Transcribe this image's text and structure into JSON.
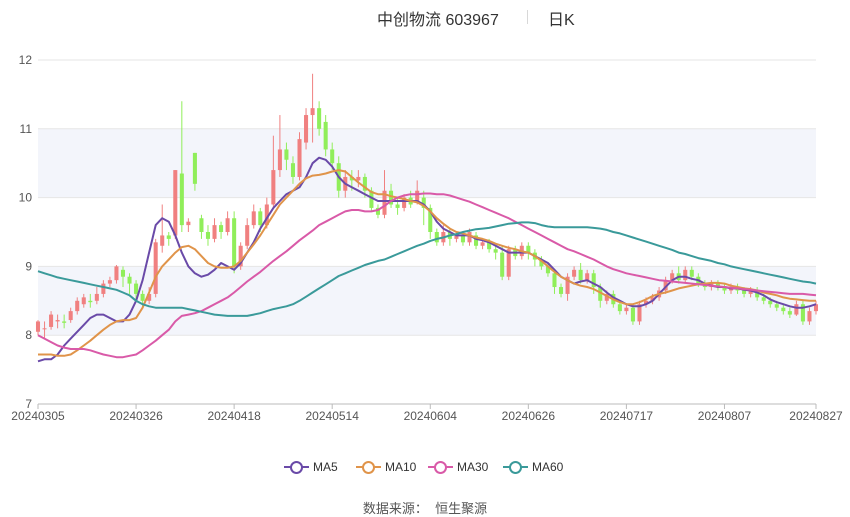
{
  "title": {
    "name": "中创物流 603967",
    "period": "日K"
  },
  "source": {
    "label": "数据来源：",
    "value": "恒生聚源"
  },
  "colors": {
    "up": "#f08080",
    "down": "#90ee5a",
    "MA5": "#6a4aa8",
    "MA10": "#e0944a",
    "MA30": "#d95aa8",
    "MA60": "#3a9a9a",
    "band": "#f3f5fb",
    "grid": "#e6e6e6"
  },
  "chart_data": {
    "type": "candlestick",
    "ylim": [
      7,
      12
    ],
    "yticks": [
      "7",
      "8",
      "9",
      "10",
      "11",
      "12"
    ],
    "xtick_labels": [
      "20240305",
      "20240326",
      "20240418",
      "20240514",
      "20240604",
      "20240626",
      "20240717",
      "20240807",
      "20240827"
    ],
    "xtick_index": [
      0,
      15,
      30,
      45,
      60,
      75,
      90,
      105,
      119
    ],
    "grid": true,
    "legend_position": "bottom",
    "candles": [
      [
        8.05,
        8.2,
        8.0,
        8.22
      ],
      [
        8.1,
        8.1,
        7.95,
        8.2
      ],
      [
        8.12,
        8.3,
        8.08,
        8.35
      ],
      [
        8.2,
        8.22,
        8.1,
        8.3
      ],
      [
        8.2,
        8.18,
        8.1,
        8.3
      ],
      [
        8.22,
        8.35,
        8.18,
        8.4
      ],
      [
        8.35,
        8.5,
        8.3,
        8.55
      ],
      [
        8.45,
        8.55,
        8.4,
        8.6
      ],
      [
        8.5,
        8.48,
        8.4,
        8.6
      ],
      [
        8.5,
        8.6,
        8.45,
        8.7
      ],
      [
        8.6,
        8.75,
        8.55,
        8.8
      ],
      [
        8.75,
        8.8,
        8.7,
        8.85
      ],
      [
        8.8,
        9.0,
        8.75,
        9.02
      ],
      [
        8.95,
        8.85,
        8.7,
        9.0
      ],
      [
        8.85,
        8.75,
        8.6,
        8.9
      ],
      [
        8.75,
        8.6,
        8.5,
        8.8
      ],
      [
        8.6,
        8.5,
        8.4,
        8.65
      ],
      [
        8.5,
        8.6,
        8.45,
        8.7
      ],
      [
        8.6,
        9.35,
        8.55,
        9.4
      ],
      [
        9.3,
        9.45,
        9.2,
        9.9
      ],
      [
        9.45,
        9.4,
        9.3,
        9.5
      ],
      [
        9.45,
        10.4,
        9.4,
        10.4
      ],
      [
        10.35,
        9.6,
        9.5,
        11.4
      ],
      [
        9.6,
        9.65,
        9.5,
        9.7
      ],
      [
        10.65,
        10.2,
        10.1,
        10.65
      ],
      [
        9.7,
        9.5,
        9.4,
        9.75
      ],
      [
        9.5,
        9.4,
        9.3,
        9.6
      ],
      [
        9.4,
        9.6,
        9.35,
        9.7
      ],
      [
        9.6,
        9.5,
        9.4,
        9.65
      ],
      [
        9.5,
        9.7,
        9.45,
        9.8
      ],
      [
        9.7,
        9.0,
        8.9,
        9.8
      ],
      [
        9.0,
        9.3,
        8.95,
        9.35
      ],
      [
        9.3,
        9.6,
        9.25,
        9.7
      ],
      [
        9.6,
        9.8,
        9.55,
        9.9
      ],
      [
        9.8,
        9.6,
        9.5,
        9.85
      ],
      [
        9.6,
        9.9,
        9.55,
        10.0
      ],
      [
        9.9,
        10.4,
        9.85,
        10.9
      ],
      [
        10.4,
        10.7,
        10.3,
        11.2
      ],
      [
        10.7,
        10.55,
        10.4,
        10.8
      ],
      [
        10.5,
        10.3,
        10.2,
        10.6
      ],
      [
        10.3,
        10.85,
        10.25,
        10.95
      ],
      [
        10.8,
        11.2,
        10.7,
        11.3
      ],
      [
        11.2,
        11.3,
        10.8,
        11.8
      ],
      [
        11.3,
        11.0,
        10.9,
        11.4
      ],
      [
        11.1,
        10.7,
        10.6,
        11.2
      ],
      [
        10.7,
        10.5,
        10.4,
        10.8
      ],
      [
        10.5,
        10.1,
        10.0,
        10.6
      ],
      [
        10.1,
        10.3,
        10.0,
        10.4
      ],
      [
        10.3,
        10.25,
        10.1,
        10.4
      ],
      [
        10.25,
        10.3,
        10.15,
        10.4
      ],
      [
        10.3,
        10.1,
        10.0,
        10.35
      ],
      [
        10.1,
        9.85,
        9.8,
        10.15
      ],
      [
        9.85,
        9.75,
        9.7,
        9.9
      ],
      [
        9.75,
        10.1,
        9.7,
        10.4
      ],
      [
        10.1,
        9.9,
        9.85,
        10.2
      ],
      [
        9.9,
        9.85,
        9.75,
        10.0
      ],
      [
        9.85,
        10.0,
        9.8,
        10.05
      ],
      [
        10.0,
        9.9,
        9.85,
        10.1
      ],
      [
        9.95,
        10.1,
        9.9,
        10.25
      ],
      [
        10.0,
        9.85,
        9.6,
        10.1
      ],
      [
        9.85,
        9.5,
        9.4,
        9.9
      ],
      [
        9.5,
        9.35,
        9.3,
        9.55
      ],
      [
        9.35,
        9.5,
        9.3,
        9.6
      ],
      [
        9.5,
        9.4,
        9.3,
        9.55
      ],
      [
        9.4,
        9.45,
        9.35,
        9.5
      ],
      [
        9.45,
        9.35,
        9.3,
        9.5
      ],
      [
        9.35,
        9.5,
        9.3,
        9.55
      ],
      [
        9.45,
        9.3,
        9.25,
        9.5
      ],
      [
        9.3,
        9.35,
        9.25,
        9.4
      ],
      [
        9.35,
        9.25,
        9.2,
        9.4
      ],
      [
        9.25,
        9.2,
        9.1,
        9.3
      ],
      [
        9.2,
        8.85,
        8.8,
        9.3
      ],
      [
        8.85,
        9.25,
        8.8,
        9.3
      ],
      [
        9.25,
        9.15,
        9.1,
        9.3
      ],
      [
        9.15,
        9.3,
        9.1,
        9.35
      ],
      [
        9.3,
        9.2,
        9.1,
        9.35
      ],
      [
        9.2,
        9.1,
        9.0,
        9.25
      ],
      [
        9.1,
        9.0,
        8.95,
        9.15
      ],
      [
        9.0,
        8.9,
        8.85,
        9.05
      ],
      [
        8.9,
        8.7,
        8.6,
        8.95
      ],
      [
        8.7,
        8.6,
        8.55,
        8.75
      ],
      [
        8.6,
        8.85,
        8.5,
        8.9
      ],
      [
        8.85,
        8.95,
        8.8,
        9.0
      ],
      [
        8.95,
        8.8,
        8.75,
        9.05
      ],
      [
        8.8,
        8.9,
        8.75,
        8.95
      ],
      [
        8.9,
        8.7,
        8.6,
        8.95
      ],
      [
        8.7,
        8.5,
        8.4,
        8.75
      ],
      [
        8.5,
        8.6,
        8.45,
        8.65
      ],
      [
        8.6,
        8.45,
        8.4,
        8.65
      ],
      [
        8.45,
        8.35,
        8.3,
        8.5
      ],
      [
        8.35,
        8.4,
        8.3,
        8.45
      ],
      [
        8.4,
        8.2,
        8.15,
        8.45
      ],
      [
        8.2,
        8.45,
        8.15,
        8.5
      ],
      [
        8.45,
        8.5,
        8.4,
        8.55
      ],
      [
        8.5,
        8.55,
        8.45,
        8.6
      ],
      [
        8.55,
        8.65,
        8.5,
        8.7
      ],
      [
        8.65,
        8.8,
        8.6,
        8.85
      ],
      [
        8.8,
        8.9,
        8.75,
        8.95
      ],
      [
        8.9,
        8.8,
        8.75,
        9.0
      ],
      [
        8.8,
        8.95,
        8.75,
        9.0
      ],
      [
        8.95,
        8.85,
        8.8,
        9.0
      ],
      [
        8.85,
        8.75,
        8.7,
        8.9
      ],
      [
        8.75,
        8.7,
        8.65,
        8.8
      ],
      [
        8.7,
        8.75,
        8.65,
        8.8
      ],
      [
        8.75,
        8.7,
        8.65,
        8.8
      ],
      [
        8.7,
        8.65,
        8.6,
        8.75
      ],
      [
        8.65,
        8.7,
        8.6,
        8.75
      ],
      [
        8.7,
        8.65,
        8.6,
        8.75
      ],
      [
        8.65,
        8.6,
        8.55,
        8.7
      ],
      [
        8.6,
        8.65,
        8.55,
        8.7
      ],
      [
        8.65,
        8.55,
        8.5,
        8.7
      ],
      [
        8.55,
        8.5,
        8.45,
        8.6
      ],
      [
        8.5,
        8.45,
        8.4,
        8.55
      ],
      [
        8.45,
        8.4,
        8.35,
        8.5
      ],
      [
        8.4,
        8.35,
        8.3,
        8.45
      ],
      [
        8.35,
        8.3,
        8.25,
        8.4
      ],
      [
        8.3,
        8.45,
        8.28,
        8.5
      ],
      [
        8.45,
        8.2,
        8.15,
        8.5
      ],
      [
        8.2,
        8.35,
        8.15,
        8.4
      ],
      [
        8.35,
        8.45,
        8.3,
        8.5
      ]
    ],
    "series": [
      {
        "name": "MA5",
        "color": "#6a4aa8",
        "values": [
          7.62,
          7.65,
          7.65,
          7.72,
          7.85,
          7.95,
          8.05,
          8.15,
          8.25,
          8.3,
          8.3,
          8.25,
          8.2,
          8.2,
          8.3,
          8.5,
          8.8,
          9.2,
          9.6,
          9.7,
          9.65,
          9.45,
          9.2,
          9.0,
          8.9,
          8.85,
          8.88,
          8.95,
          9.05,
          9.0,
          8.95,
          9.05,
          9.2,
          9.35,
          9.55,
          9.7,
          9.85,
          9.95,
          10.05,
          10.1,
          10.15,
          10.3,
          10.5,
          10.58,
          10.55,
          10.45,
          10.3,
          10.2,
          10.15,
          10.1,
          10.05,
          10.0,
          9.95,
          9.95,
          9.95,
          9.95,
          9.95,
          9.95,
          9.95,
          9.9,
          9.8,
          9.65,
          9.55,
          9.5,
          9.45,
          9.45,
          9.45,
          9.4,
          9.38,
          9.35,
          9.3,
          9.25,
          9.2,
          9.2,
          9.2,
          9.2,
          9.15,
          9.1,
          9.05,
          8.95,
          8.85,
          8.8,
          8.75,
          8.78,
          8.8,
          8.75,
          8.7,
          8.62,
          8.55,
          8.5,
          8.45,
          8.42,
          8.42,
          8.45,
          8.5,
          8.6,
          8.7,
          8.8,
          8.85,
          8.85,
          8.82,
          8.8,
          8.75,
          8.72,
          8.7,
          8.7,
          8.68,
          8.68,
          8.66,
          8.65,
          8.62,
          8.58,
          8.52,
          8.48,
          8.45,
          8.42,
          8.4,
          8.4,
          8.42,
          8.45
        ]
      },
      {
        "name": "MA10",
        "color": "#e0944a",
        "values": [
          7.72,
          7.72,
          7.72,
          7.7,
          7.7,
          7.72,
          7.78,
          7.85,
          7.92,
          8.0,
          8.08,
          8.15,
          8.2,
          8.22,
          8.22,
          8.25,
          8.4,
          8.62,
          8.85,
          9.0,
          9.1,
          9.2,
          9.28,
          9.3,
          9.25,
          9.15,
          9.05,
          9.0,
          8.98,
          8.98,
          9.0,
          9.08,
          9.2,
          9.32,
          9.45,
          9.6,
          9.75,
          9.9,
          10.0,
          10.1,
          10.2,
          10.28,
          10.32,
          10.33,
          10.35,
          10.38,
          10.4,
          10.38,
          10.3,
          10.22,
          10.15,
          10.08,
          10.05,
          10.05,
          10.02,
          10.0,
          9.98,
          9.95,
          9.93,
          9.88,
          9.8,
          9.7,
          9.62,
          9.55,
          9.5,
          9.48,
          9.45,
          9.42,
          9.4,
          9.37,
          9.33,
          9.3,
          9.27,
          9.25,
          9.22,
          9.2,
          9.15,
          9.08,
          9.0,
          8.92,
          8.85,
          8.8,
          8.75,
          8.72,
          8.7,
          8.67,
          8.62,
          8.57,
          8.52,
          8.48,
          8.45,
          8.45,
          8.48,
          8.52,
          8.57,
          8.6,
          8.62,
          8.65,
          8.68,
          8.7,
          8.72,
          8.74,
          8.75,
          8.76,
          8.76,
          8.75,
          8.72,
          8.7,
          8.68,
          8.67,
          8.65,
          8.62,
          8.6,
          8.58,
          8.55,
          8.53,
          8.52,
          8.51,
          8.5,
          8.5
        ]
      },
      {
        "name": "MA30",
        "color": "#d95aa8",
        "values": [
          8.0,
          7.95,
          7.9,
          7.85,
          7.82,
          7.8,
          7.8,
          7.8,
          7.78,
          7.75,
          7.72,
          7.7,
          7.68,
          7.68,
          7.7,
          7.72,
          7.78,
          7.85,
          7.92,
          8.0,
          8.08,
          8.2,
          8.28,
          8.3,
          8.32,
          8.35,
          8.4,
          8.45,
          8.5,
          8.55,
          8.62,
          8.7,
          8.78,
          8.85,
          8.92,
          9.0,
          9.08,
          9.15,
          9.22,
          9.3,
          9.38,
          9.45,
          9.52,
          9.6,
          9.65,
          9.7,
          9.75,
          9.8,
          9.82,
          9.82,
          9.8,
          9.8,
          9.82,
          9.88,
          9.95,
          10.0,
          10.03,
          10.05,
          10.05,
          10.06,
          10.06,
          10.05,
          10.05,
          10.03,
          10.0,
          9.97,
          9.94,
          9.9,
          9.86,
          9.82,
          9.78,
          9.74,
          9.7,
          9.65,
          9.6,
          9.55,
          9.5,
          9.45,
          9.4,
          9.35,
          9.3,
          9.25,
          9.22,
          9.18,
          9.14,
          9.1,
          9.05,
          9.0,
          8.96,
          8.93,
          8.9,
          8.88,
          8.86,
          8.84,
          8.82,
          8.8,
          8.79,
          8.78,
          8.77,
          8.76,
          8.75,
          8.74,
          8.73,
          8.72,
          8.71,
          8.7,
          8.69,
          8.68,
          8.67,
          8.66,
          8.65,
          8.64,
          8.63,
          8.62,
          8.61,
          8.6,
          8.6,
          8.6,
          8.59,
          8.58
        ]
      },
      {
        "name": "MA60",
        "color": "#3a9a9a",
        "values": [
          8.93,
          8.9,
          8.87,
          8.84,
          8.82,
          8.8,
          8.78,
          8.76,
          8.74,
          8.72,
          8.7,
          8.68,
          8.66,
          8.62,
          8.58,
          8.5,
          8.45,
          8.42,
          8.4,
          8.4,
          8.4,
          8.4,
          8.4,
          8.38,
          8.36,
          8.34,
          8.32,
          8.3,
          8.29,
          8.28,
          8.28,
          8.28,
          8.28,
          8.3,
          8.32,
          8.35,
          8.38,
          8.4,
          8.42,
          8.45,
          8.5,
          8.56,
          8.62,
          8.68,
          8.74,
          8.8,
          8.86,
          8.9,
          8.94,
          8.98,
          9.02,
          9.05,
          9.08,
          9.1,
          9.14,
          9.18,
          9.22,
          9.26,
          9.3,
          9.33,
          9.37,
          9.4,
          9.42,
          9.45,
          9.47,
          9.5,
          9.52,
          9.54,
          9.55,
          9.56,
          9.58,
          9.6,
          9.62,
          9.63,
          9.64,
          9.64,
          9.63,
          9.6,
          9.58,
          9.57,
          9.57,
          9.57,
          9.57,
          9.57,
          9.57,
          9.56,
          9.55,
          9.53,
          9.5,
          9.48,
          9.45,
          9.42,
          9.39,
          9.36,
          9.33,
          9.3,
          9.27,
          9.24,
          9.2,
          9.18,
          9.15,
          9.12,
          9.1,
          9.08,
          9.05,
          9.03,
          9.0,
          8.98,
          8.96,
          8.94,
          8.92,
          8.9,
          8.88,
          8.86,
          8.84,
          8.82,
          8.8,
          8.78,
          8.77,
          8.75
        ]
      }
    ]
  }
}
